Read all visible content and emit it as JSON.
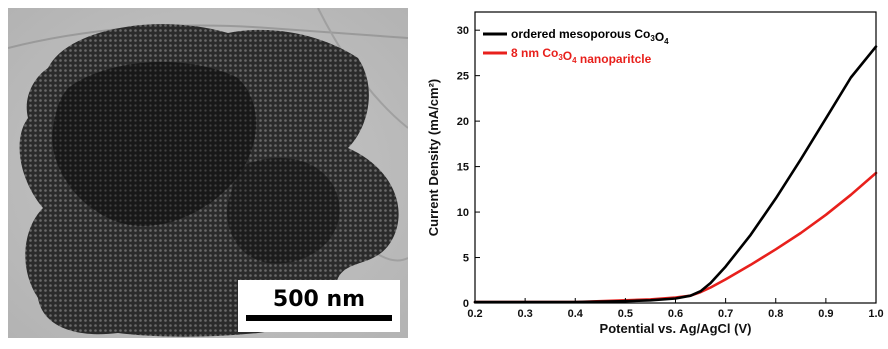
{
  "micrograph": {
    "scale_bar_label": "500 nm"
  },
  "chart_data": {
    "type": "line",
    "title": "",
    "xlabel": "Potential vs. Ag/AgCl (V)",
    "ylabel": "Current Density (mA/cm²)",
    "xlim": [
      0.2,
      1.0
    ],
    "ylim": [
      0,
      32
    ],
    "x_ticks": [
      "0.2",
      "0.3",
      "0.4",
      "0.5",
      "0.6",
      "0.7",
      "0.8",
      "0.9",
      "1.0"
    ],
    "y_ticks": [
      "0",
      "5",
      "10",
      "15",
      "20",
      "25",
      "30"
    ],
    "grid": false,
    "legend_position": "top-left",
    "series": [
      {
        "name_prefix": "ordered mesoporous Co",
        "name_sub1": "3",
        "name_mid": "O",
        "name_sub2": "4",
        "name_suffix": "",
        "color": "#000000",
        "x": [
          0.2,
          0.3,
          0.4,
          0.5,
          0.55,
          0.6,
          0.63,
          0.65,
          0.67,
          0.7,
          0.75,
          0.8,
          0.85,
          0.9,
          0.95,
          1.0
        ],
        "y": [
          0.1,
          0.1,
          0.1,
          0.2,
          0.3,
          0.5,
          0.8,
          1.3,
          2.2,
          4.0,
          7.5,
          11.5,
          15.8,
          20.3,
          24.8,
          28.2
        ]
      },
      {
        "name_prefix": "8 nm Co",
        "name_sub1": "3",
        "name_mid": "O",
        "name_sub2": "4",
        "name_suffix": " nanoparitcle",
        "color": "#e8201c",
        "x": [
          0.2,
          0.3,
          0.4,
          0.5,
          0.55,
          0.6,
          0.63,
          0.65,
          0.67,
          0.7,
          0.75,
          0.8,
          0.85,
          0.9,
          0.95,
          1.0
        ],
        "y": [
          0.1,
          0.1,
          0.1,
          0.3,
          0.4,
          0.6,
          0.8,
          1.2,
          1.7,
          2.6,
          4.2,
          5.9,
          7.7,
          9.7,
          11.9,
          14.3
        ]
      }
    ]
  }
}
